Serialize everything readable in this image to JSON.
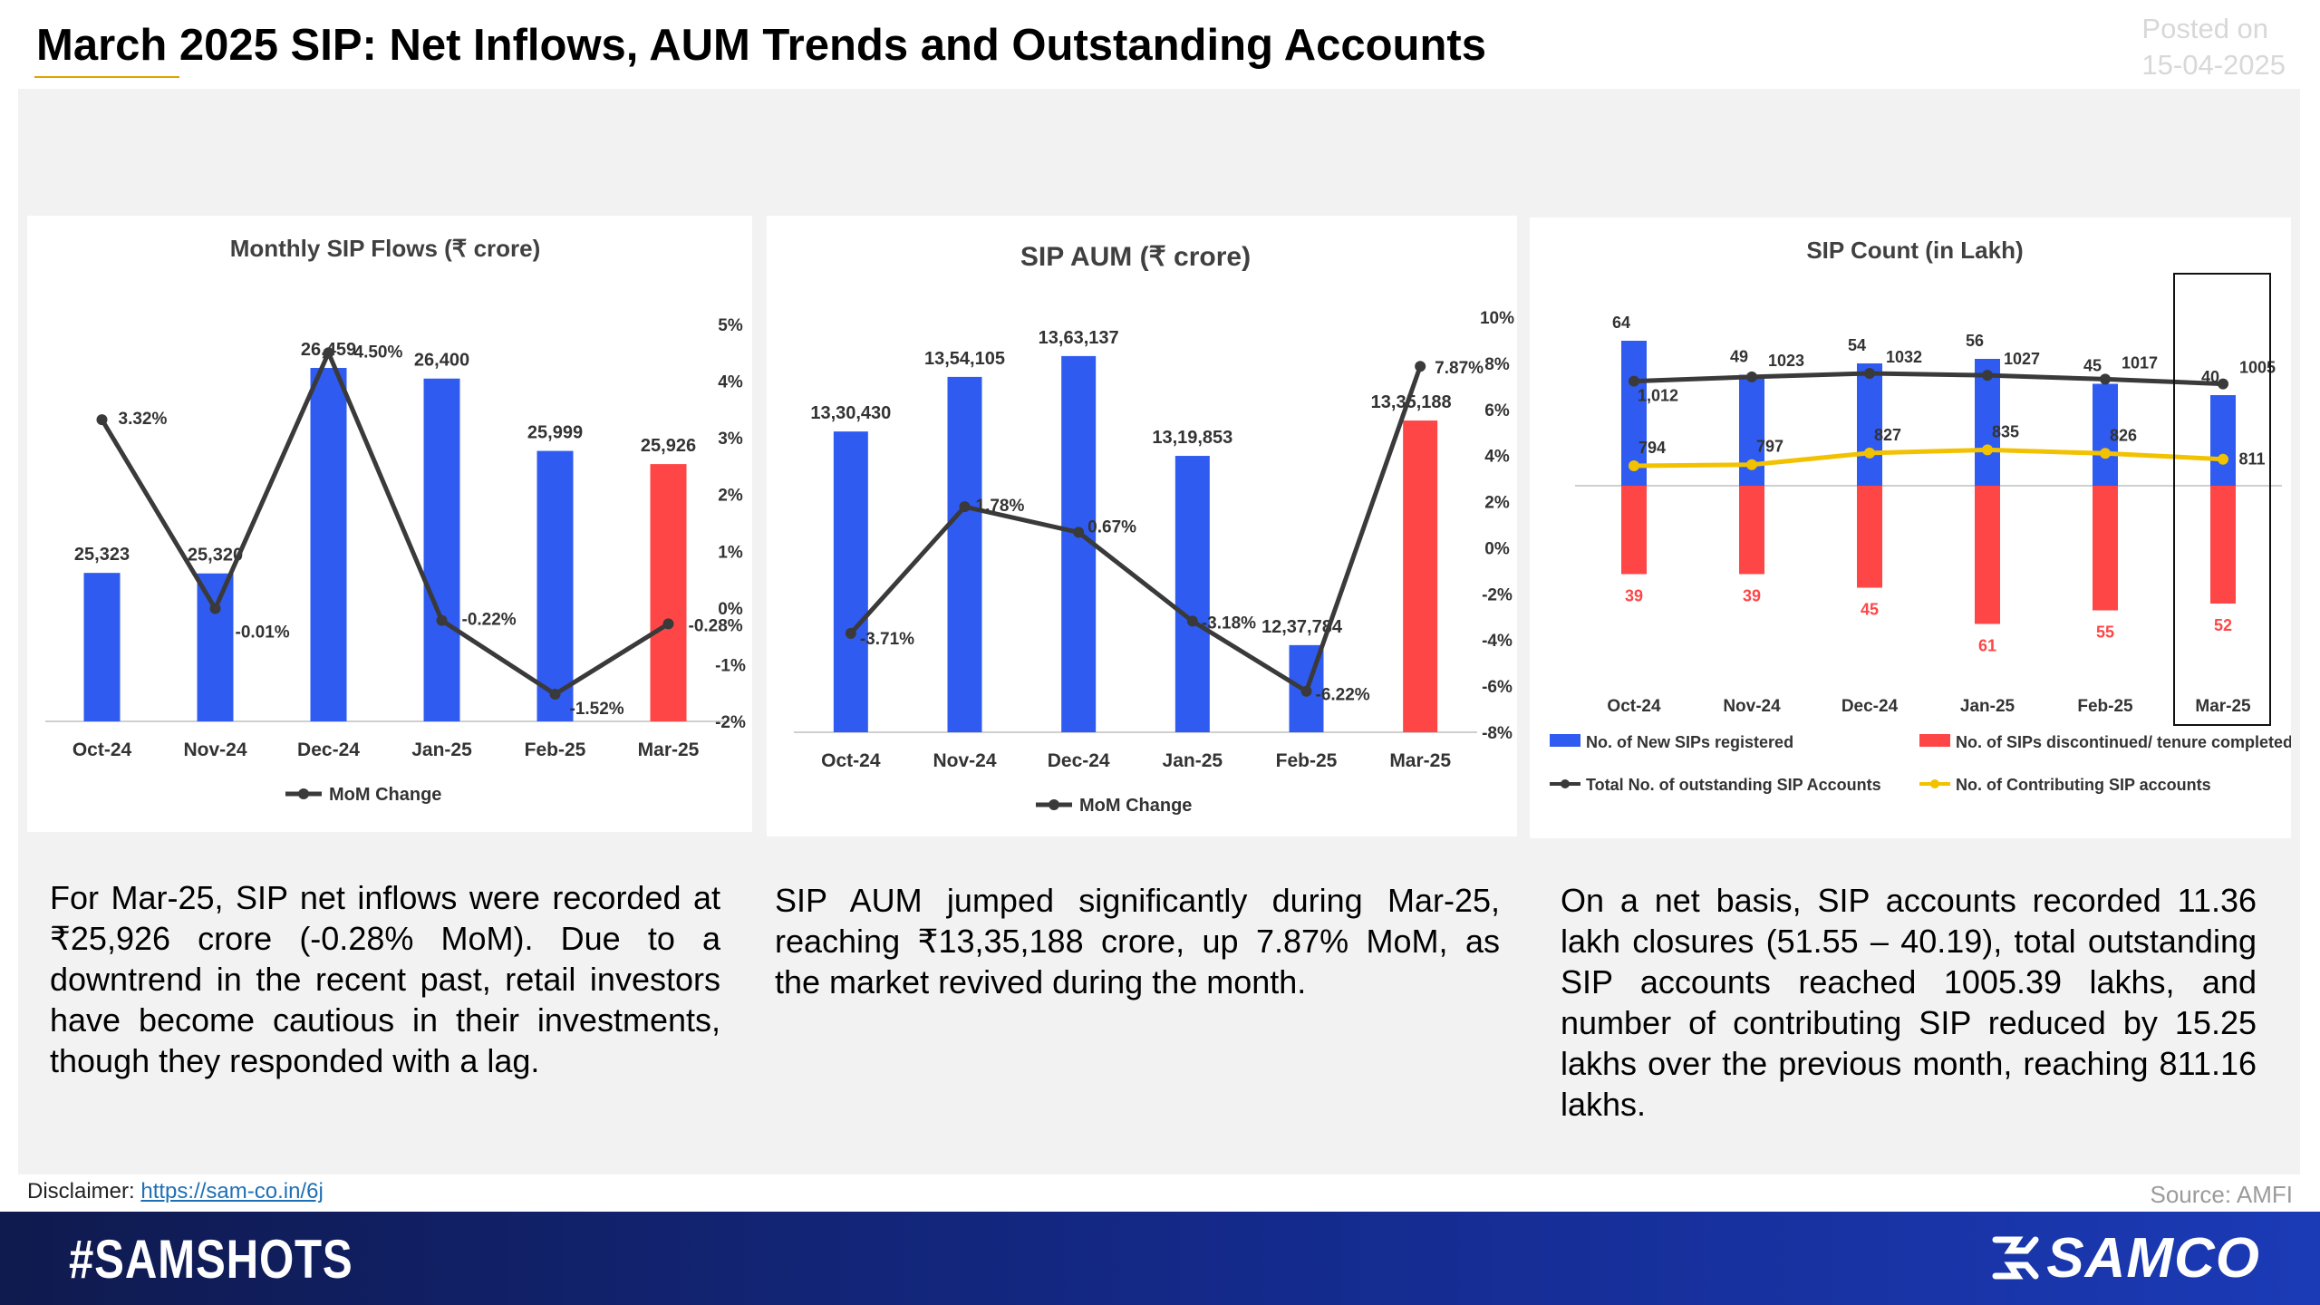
{
  "header": {
    "title": "March 2025 SIP: Net Inflows, AUM Trends and Outstanding Accounts",
    "posted_label": "Posted on",
    "posted_date": "15-04-2025"
  },
  "descriptions": {
    "flows": "For Mar-25, SIP net inflows were recorded at ₹25,926 crore (-0.28% MoM). Due to a downtrend in the recent past, retail investors have become cautious in their investments, though they responded with a lag.",
    "aum": "SIP AUM jumped significantly during Mar-25, reaching ₹13,35,188 crore, up 7.87% MoM, as the market revived during the month.",
    "count": "On a net basis, SIP accounts recorded 11.36 lakh closures (51.55 – 40.19), total outstanding SIP accounts reached 1005.39 lakhs, and number of contributing SIP reduced by 15.25 lakhs over the previous month, reaching 811.16 lakhs."
  },
  "footer": {
    "disclaimer_label": "Disclaimer:",
    "disclaimer_link": "https://sam-co.in/6j",
    "source": "Source: AMFI",
    "hashtag": "#SAMSHOTS",
    "brand": "SAMCO"
  },
  "colors": {
    "bar_blue": "#2f5bf0",
    "bar_red": "#ff4646",
    "line_dark": "#3a3a3a",
    "line_yellow": "#f2c100"
  },
  "chart_data": [
    {
      "type": "bar",
      "title": "Monthly SIP Flows  (₹ crore)",
      "categories": [
        "Oct-24",
        "Nov-24",
        "Dec-24",
        "Jan-25",
        "Feb-25",
        "Mar-25"
      ],
      "series": [
        {
          "values": [
            25323,
            25320,
            26459,
            26400,
            25999,
            25926
          ],
          "labels": [
            "25,323",
            "25,320",
            "26,459",
            "26,400",
            "25,999",
            "25,926"
          ]
        },
        {
          "name": "MoM Change",
          "type": "line",
          "axis": "right",
          "values": [
            3.32,
            -0.01,
            4.5,
            -0.22,
            -1.52,
            -0.28
          ],
          "labels": [
            "3.32%",
            "-0.01%",
            "4.50%",
            "-0.22%",
            "-1.52%",
            "-0.28%"
          ]
        }
      ],
      "highlight_last_bar": true,
      "ylim_left": [
        24500,
        26700
      ],
      "ylim_right": [
        -2,
        5
      ],
      "right_ticks": [
        "5%",
        "4%",
        "3%",
        "2%",
        "1%",
        "0%",
        "-1%",
        "-2%"
      ],
      "legend": [
        "MoM Change"
      ],
      "legend_position": "bottom"
    },
    {
      "type": "bar",
      "title": "SIP AUM (₹ crore)",
      "categories": [
        "Oct-24",
        "Nov-24",
        "Dec-24",
        "Jan-25",
        "Feb-25",
        "Mar-25"
      ],
      "series": [
        {
          "values": [
            1330430,
            1354105,
            1363137,
            1319853,
            1237784,
            1335188
          ],
          "labels": [
            "13,30,430",
            "13,54,105",
            "13,63,137",
            "13,19,853",
            "12,37,784",
            "13,35,188"
          ]
        },
        {
          "name": "MoM Change",
          "type": "line",
          "axis": "right",
          "values": [
            -3.71,
            1.78,
            0.67,
            -3.18,
            -6.22,
            7.87
          ],
          "labels": [
            "-3.71%",
            "1.78%",
            "0.67%",
            "-3.18%",
            "-6.22%",
            "7.87%"
          ]
        }
      ],
      "highlight_last_bar": true,
      "ylim_left": [
        1200000,
        1380000
      ],
      "ylim_right": [
        -8,
        10
      ],
      "right_ticks": [
        "10%",
        "8%",
        "6%",
        "4%",
        "2%",
        "0%",
        "-2%",
        "-4%",
        "-6%",
        "-8%"
      ],
      "legend": [
        "MoM Change"
      ],
      "legend_position": "bottom"
    },
    {
      "type": "bar",
      "title": "SIP Count (in Lakh)",
      "categories": [
        "Oct-24",
        "Nov-24",
        "Dec-24",
        "Jan-25",
        "Feb-25",
        "Mar-25"
      ],
      "series": [
        {
          "name": "No. of New SIPs registered",
          "values": [
            64,
            49,
            54,
            56,
            45,
            40
          ]
        },
        {
          "name": "No. of SIPs discontinued/ tenure completed",
          "values": [
            39,
            39,
            45,
            61,
            55,
            52
          ]
        },
        {
          "name": "Total No. of outstanding SIP Accounts",
          "type": "line",
          "values": [
            1012,
            1023,
            1032,
            1027,
            1017,
            1005
          ],
          "labels": [
            "1,012",
            "1023",
            "1032",
            "1027",
            "1017",
            "1005"
          ]
        },
        {
          "name": "No. of Contributing SIP accounts",
          "type": "line",
          "values": [
            794,
            797,
            827,
            835,
            826,
            811
          ],
          "labels": [
            "794",
            "797",
            "827",
            "835",
            "826",
            "811"
          ]
        }
      ],
      "highlight_category": "Mar-25",
      "legend_position": "bottom"
    }
  ]
}
